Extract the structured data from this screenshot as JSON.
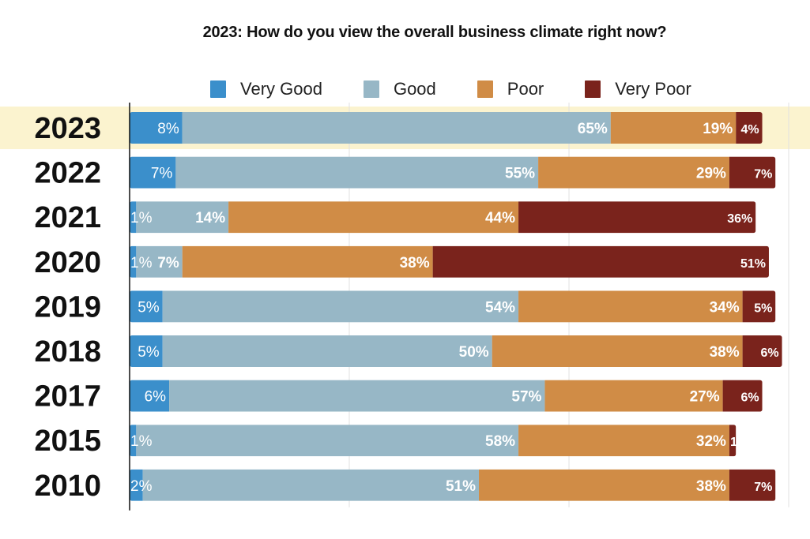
{
  "chart_data": {
    "type": "bar",
    "orientation": "horizontal",
    "stacked": true,
    "title": "2023: How do you view the overall business climate right now?",
    "xlabel": "",
    "ylabel": "",
    "xlim": [
      0,
      100
    ],
    "grid": true,
    "legend_position": "top",
    "highlight_category": "2023",
    "categories": [
      "2023",
      "2022",
      "2021",
      "2020",
      "2019",
      "2018",
      "2017",
      "2015",
      "2010"
    ],
    "series": [
      {
        "name": "Very Good",
        "color": "#3b8fcb",
        "values": [
          8,
          7,
          1,
          1,
          5,
          5,
          6,
          1,
          2
        ],
        "labels": [
          "8%",
          "7%",
          "1%",
          "1%",
          "5%",
          "5%",
          "6%",
          "1%",
          "2%"
        ]
      },
      {
        "name": "Good",
        "color": "#97b7c6",
        "values": [
          65,
          55,
          14,
          7,
          54,
          50,
          57,
          58,
          51
        ],
        "labels": [
          "65%",
          "55%",
          "14%",
          "7%",
          "54%",
          "50%",
          "57%",
          "58%",
          "51%"
        ]
      },
      {
        "name": "Poor",
        "color": "#d08c46",
        "values": [
          19,
          29,
          44,
          38,
          34,
          38,
          27,
          32,
          38
        ],
        "labels": [
          "19%",
          "29%",
          "44%",
          "38%",
          "34%",
          "38%",
          "27%",
          "32%",
          "38%"
        ]
      },
      {
        "name": "Very Poor",
        "color": "#7a231c",
        "values": [
          4,
          7,
          36,
          51,
          5,
          6,
          6,
          1,
          7
        ],
        "labels": [
          "4%",
          "7%",
          "36%",
          "51%",
          "5%",
          "6%",
          "6%",
          "1",
          "7%"
        ]
      }
    ]
  },
  "colors": {
    "highlight_band": "#fbf3cf",
    "gridline": "#e2e2e2",
    "axis": "#111111",
    "category_label": "#111111"
  }
}
